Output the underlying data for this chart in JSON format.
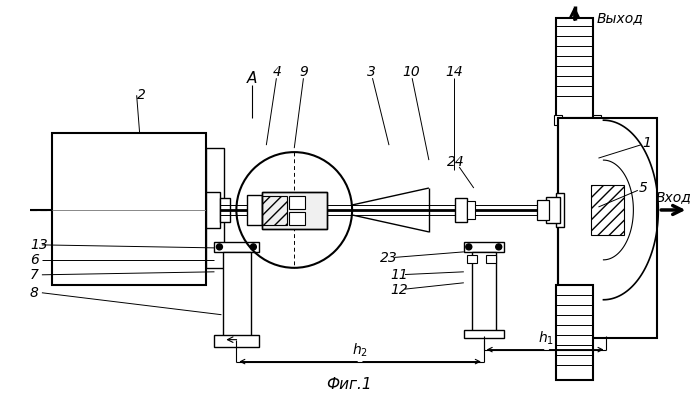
{
  "bg_color": "#ffffff",
  "line_color": "#000000",
  "title": "Фиг.1",
  "label_vykhod": "Выход",
  "label_vkhod": "Вход"
}
